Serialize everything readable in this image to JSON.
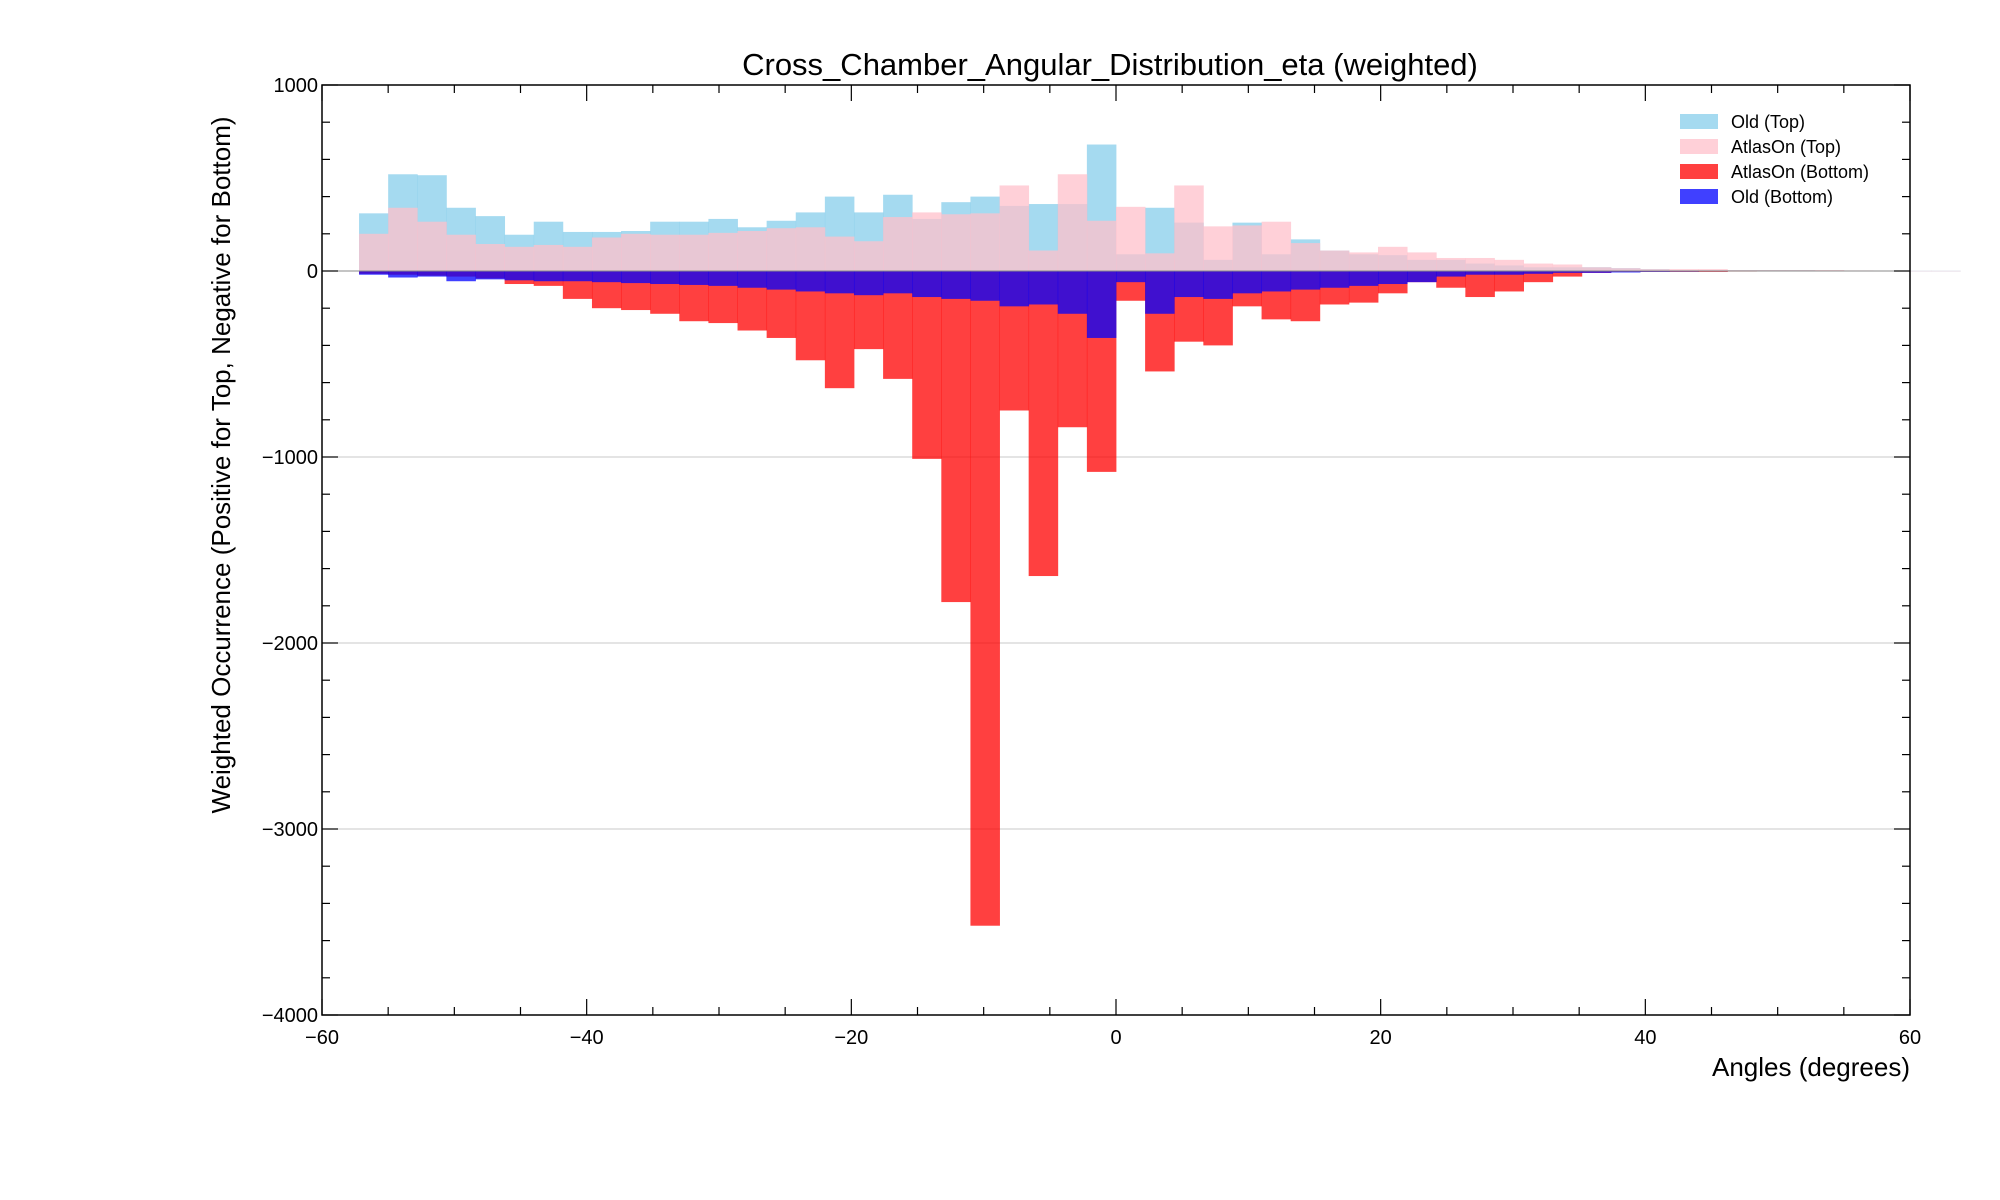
{
  "chart_data": {
    "type": "bar",
    "title": "Cross_Chamber_Angular_Distribution_eta (weighted)",
    "xlabel": "Angles (degrees)",
    "ylabel": "Weighted Occurrence (Positive for Top, Negative for Bottom)",
    "xlim": [
      -60,
      60
    ],
    "ylim": [
      -4000,
      1000
    ],
    "x_ticks": [
      -60,
      -40,
      -20,
      0,
      20,
      40,
      60
    ],
    "y_ticks": [
      -4000,
      -3000,
      -2000,
      -1000,
      0,
      1000
    ],
    "x_tick_labels": [
      "−60",
      "−40",
      "−20",
      "0",
      "20",
      "40",
      "60"
    ],
    "y_tick_labels": [
      "−4000",
      "−3000",
      "−2000",
      "−1000",
      "0",
      "1000"
    ],
    "grid": "horizontal",
    "legend_position": "top-right",
    "bin_width": 2.2,
    "bin_start": -57.2,
    "series": [
      {
        "name": "Old (Top)",
        "color": "#87ceeb",
        "opacity": 0.75,
        "values": [
          310,
          520,
          515,
          340,
          295,
          195,
          265,
          210,
          210,
          215,
          265,
          265,
          280,
          235,
          270,
          315,
          400,
          315,
          410,
          280,
          370,
          400,
          350,
          360,
          360,
          680,
          90,
          340,
          260,
          60,
          260,
          90,
          170,
          110,
          90,
          85,
          60,
          60,
          40,
          30,
          20,
          20,
          20,
          15,
          10,
          5,
          5,
          5,
          5,
          5,
          3,
          2,
          2,
          1,
          1
        ]
      },
      {
        "name": "AtlasOn (Top)",
        "color": "#ffc0cb",
        "opacity": 0.75,
        "values": [
          200,
          340,
          265,
          195,
          145,
          130,
          140,
          130,
          180,
          200,
          195,
          195,
          205,
          215,
          230,
          235,
          185,
          160,
          290,
          315,
          305,
          310,
          460,
          110,
          520,
          270,
          345,
          95,
          460,
          240,
          245,
          265,
          150,
          110,
          100,
          130,
          100,
          70,
          70,
          60,
          40,
          35,
          20,
          15,
          10,
          10,
          10,
          5,
          5,
          5,
          5,
          3,
          2,
          1,
          1
        ]
      },
      {
        "name": "AtlasOn (Bottom)",
        "color": "#ff0000",
        "opacity": 0.75,
        "values": [
          -15,
          -20,
          -25,
          -30,
          -40,
          -70,
          -80,
          -150,
          -200,
          -210,
          -230,
          -270,
          -280,
          -320,
          -360,
          -480,
          -630,
          -420,
          -580,
          -1010,
          -1780,
          -3520,
          -750,
          -1640,
          -840,
          -1080,
          -160,
          -540,
          -380,
          -400,
          -190,
          -260,
          -270,
          -180,
          -170,
          -120,
          -60,
          -90,
          -140,
          -110,
          -60,
          -30,
          -10,
          -5,
          -5,
          -5,
          -5,
          -3,
          -2,
          -1,
          -1,
          0,
          0,
          0,
          0
        ]
      },
      {
        "name": "Old (Bottom)",
        "color": "#0000ff",
        "opacity": 0.75,
        "values": [
          -20,
          -35,
          -30,
          -55,
          -45,
          -50,
          -55,
          -55,
          -60,
          -65,
          -70,
          -75,
          -80,
          -90,
          -100,
          -110,
          -120,
          -130,
          -120,
          -140,
          -150,
          -160,
          -190,
          -180,
          -230,
          -360,
          -60,
          -230,
          -140,
          -150,
          -120,
          -110,
          -100,
          -90,
          -80,
          -70,
          -60,
          -30,
          -20,
          -20,
          -15,
          -10,
          -10,
          -8,
          -5,
          -4,
          -3,
          -2,
          -2,
          -1,
          -1,
          -1,
          0,
          0,
          0
        ]
      }
    ],
    "draw_order": [
      "Old (Top)",
      "AtlasOn (Top)",
      "AtlasOn (Bottom)",
      "Old (Bottom)"
    ]
  }
}
